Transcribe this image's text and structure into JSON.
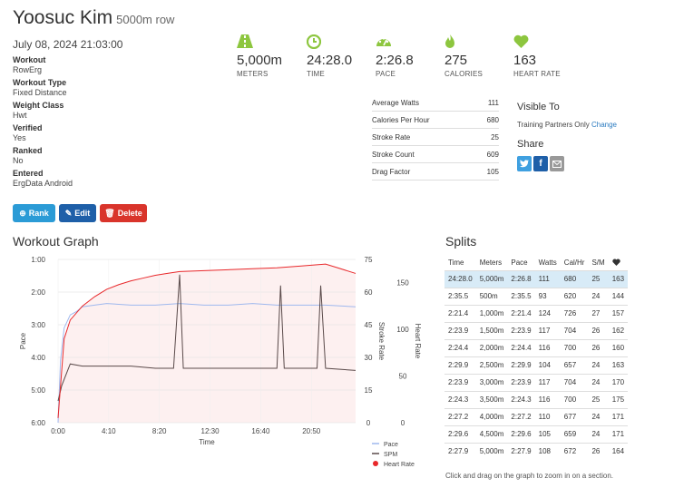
{
  "header": {
    "name": "Yoosuc Kim",
    "subtitle": "5000m row",
    "date": "July 08, 2024 21:03:00"
  },
  "meta": [
    {
      "label": "Workout",
      "value": "RowErg"
    },
    {
      "label": "Workout Type",
      "value": "Fixed Distance"
    },
    {
      "label": "Weight Class",
      "value": "Hwt"
    },
    {
      "label": "Verified",
      "value": "Yes"
    },
    {
      "label": "Ranked",
      "value": "No"
    },
    {
      "label": "Entered",
      "value": "ErgData Android"
    }
  ],
  "buttons": {
    "rank": "Rank",
    "edit": "Edit",
    "delete": "Delete"
  },
  "stats": [
    {
      "value": "5,000m",
      "label": "METERS",
      "icon": "road-icon"
    },
    {
      "value": "24:28.0",
      "label": "TIME",
      "icon": "clock-icon"
    },
    {
      "value": "2:26.8",
      "label": "PACE",
      "icon": "speedometer-icon"
    },
    {
      "value": "275",
      "label": "CALORIES",
      "icon": "flame-icon"
    },
    {
      "value": "163",
      "label": "HEART RATE",
      "icon": "heart-icon"
    }
  ],
  "metrics": [
    {
      "label": "Average Watts",
      "value": "111"
    },
    {
      "label": "Calories Per Hour",
      "value": "680"
    },
    {
      "label": "Stroke Rate",
      "value": "25"
    },
    {
      "label": "Stroke Count",
      "value": "609"
    },
    {
      "label": "Drag Factor",
      "value": "105"
    }
  ],
  "visibility": {
    "title": "Visible To",
    "value": "Training Partners Only",
    "change": "Change"
  },
  "share": {
    "title": "Share"
  },
  "colors": {
    "accent": "#8dc63f",
    "pace": "#9fb8ee",
    "spm": "#5a4a4a",
    "hr": "#e8282b",
    "hr_fill": "#fdf0f0"
  },
  "graph_title": "Workout Graph",
  "chart_data": {
    "type": "line",
    "xlabel": "Time",
    "x_ticks": [
      "0:00",
      "4:10",
      "8:20",
      "12:30",
      "16:40",
      "20:50"
    ],
    "pace_axis": {
      "label": "Pace",
      "ticks": [
        "1:00",
        "2:00",
        "3:00",
        "4:00",
        "5:00",
        "6:00"
      ]
    },
    "spm_axis": {
      "label": "Stroke Rate",
      "ticks": [
        "75",
        "60",
        "45",
        "30",
        "15",
        "0"
      ]
    },
    "hr_axis": {
      "label": "Heart Rate",
      "ticks": [
        "150",
        "100",
        "50",
        "0"
      ]
    },
    "legend": [
      "Pace",
      "SPM",
      "Heart Rate"
    ],
    "series": [
      {
        "name": "Pace",
        "x": [
          0,
          0.2,
          0.5,
          1,
          1.5,
          2,
          3,
          4,
          6,
          8,
          10,
          12,
          14,
          16,
          18,
          20,
          22,
          24.47
        ],
        "y": [
          6.0,
          4.1,
          3.1,
          2.7,
          2.6,
          2.45,
          2.4,
          2.35,
          2.4,
          2.4,
          2.35,
          2.4,
          2.4,
          2.35,
          2.4,
          2.4,
          2.4,
          2.45
        ]
      },
      {
        "name": "SPM",
        "x": [
          0,
          0.3,
          1,
          2,
          4,
          6,
          8,
          9.5,
          10,
          10.3,
          12,
          14,
          16,
          18,
          18.3,
          18.6,
          20,
          21.3,
          21.6,
          22,
          24.47
        ],
        "y": [
          10,
          17,
          27,
          26,
          26,
          26,
          25,
          25,
          68,
          25,
          25,
          25,
          25,
          25,
          63,
          25,
          25,
          25,
          63,
          25,
          24
        ]
      },
      {
        "name": "Heart Rate",
        "x": [
          0,
          0.5,
          1,
          2,
          3,
          4,
          5,
          6,
          7,
          8,
          9,
          10,
          12,
          14,
          16,
          18,
          20,
          22,
          23,
          24.47
        ],
        "y": [
          5,
          90,
          110,
          125,
          135,
          143,
          148,
          152,
          155,
          158,
          160,
          162,
          163,
          164,
          165,
          166,
          168,
          170,
          166,
          160
        ]
      }
    ],
    "ranges": {
      "time_min": [
        0,
        24.47
      ],
      "pace_min": [
        1,
        6
      ],
      "spm": [
        0,
        75
      ],
      "hr": [
        0,
        175
      ]
    }
  },
  "splits": {
    "title": "Splits",
    "headers": [
      "Time",
      "Meters",
      "Pace",
      "Watts",
      "Cal/Hr",
      "S/M",
      "heart-icon"
    ],
    "rows": [
      [
        "24:28.0",
        "5,000m",
        "2:26.8",
        "111",
        "680",
        "25",
        "163"
      ],
      [
        "2:35.5",
        "500m",
        "2:35.5",
        "93",
        "620",
        "24",
        "144"
      ],
      [
        "2:21.4",
        "1,000m",
        "2:21.4",
        "124",
        "726",
        "27",
        "157"
      ],
      [
        "2:23.9",
        "1,500m",
        "2:23.9",
        "117",
        "704",
        "26",
        "162"
      ],
      [
        "2:24.4",
        "2,000m",
        "2:24.4",
        "116",
        "700",
        "26",
        "160"
      ],
      [
        "2:29.9",
        "2,500m",
        "2:29.9",
        "104",
        "657",
        "24",
        "163"
      ],
      [
        "2:23.9",
        "3,000m",
        "2:23.9",
        "117",
        "704",
        "24",
        "170"
      ],
      [
        "2:24.3",
        "3,500m",
        "2:24.3",
        "116",
        "700",
        "25",
        "175"
      ],
      [
        "2:27.2",
        "4,000m",
        "2:27.2",
        "110",
        "677",
        "24",
        "171"
      ],
      [
        "2:29.6",
        "4,500m",
        "2:29.6",
        "105",
        "659",
        "24",
        "171"
      ],
      [
        "2:27.9",
        "5,000m",
        "2:27.9",
        "108",
        "672",
        "26",
        "164"
      ]
    ],
    "hint": "Click and drag on the graph to zoom in on a section."
  }
}
